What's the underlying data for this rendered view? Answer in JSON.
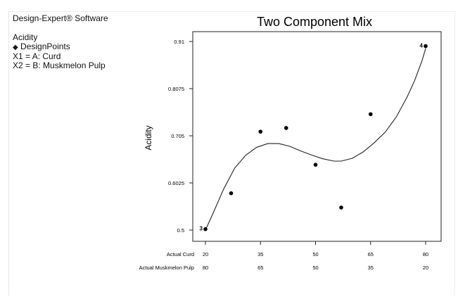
{
  "software": "Design-Expert® Software",
  "legend": {
    "response": "Acidity",
    "marker_glyph": "◆",
    "marker_label": "DesignPoints",
    "x1": "X1 = A: Curd",
    "x2": "X2 = B: Muskmelon Pulp"
  },
  "chart_data": {
    "type": "line",
    "title": "Two Component Mix",
    "ylabel": "Acidity",
    "xlabel_rows": [
      "Actual Curd",
      "Actual Muskmelon Pulp"
    ],
    "x_ticks": [
      {
        "curd": "20",
        "pulp": "80",
        "value": 20
      },
      {
        "curd": "35",
        "pulp": "65",
        "value": 35
      },
      {
        "curd": "50",
        "pulp": "50",
        "value": 50
      },
      {
        "curd": "65",
        "pulp": "35",
        "value": 65
      },
      {
        "curd": "80",
        "pulp": "20",
        "value": 80
      }
    ],
    "y_ticks": [
      {
        "label": "0.5",
        "value": 0.5
      },
      {
        "label": "0.6025",
        "value": 0.6025
      },
      {
        "label": "0.705",
        "value": 0.705
      },
      {
        "label": "0.8075",
        "value": 0.8075
      },
      {
        "label": "0.91",
        "value": 0.91
      }
    ],
    "xlim": [
      20,
      80
    ],
    "ylim": [
      0.5,
      0.91
    ],
    "grid": false,
    "points": [
      {
        "x": 20,
        "y": 0.502,
        "label": "3"
      },
      {
        "x": 27,
        "y": 0.58
      },
      {
        "x": 35,
        "y": 0.714
      },
      {
        "x": 42,
        "y": 0.722
      },
      {
        "x": 50,
        "y": 0.642
      },
      {
        "x": 57,
        "y": 0.549
      },
      {
        "x": 65,
        "y": 0.752
      },
      {
        "x": 80,
        "y": 0.9,
        "label": "4"
      }
    ],
    "fit_curve": [
      {
        "x": 20,
        "y": 0.5
      },
      {
        "x": 22,
        "y": 0.535
      },
      {
        "x": 25,
        "y": 0.59
      },
      {
        "x": 28,
        "y": 0.635
      },
      {
        "x": 31,
        "y": 0.663
      },
      {
        "x": 34,
        "y": 0.68
      },
      {
        "x": 37,
        "y": 0.688
      },
      {
        "x": 40,
        "y": 0.688
      },
      {
        "x": 43,
        "y": 0.682
      },
      {
        "x": 46,
        "y": 0.672
      },
      {
        "x": 49,
        "y": 0.663
      },
      {
        "x": 52,
        "y": 0.655
      },
      {
        "x": 55,
        "y": 0.65
      },
      {
        "x": 57,
        "y": 0.65
      },
      {
        "x": 60,
        "y": 0.656
      },
      {
        "x": 63,
        "y": 0.67
      },
      {
        "x": 66,
        "y": 0.69
      },
      {
        "x": 69,
        "y": 0.713
      },
      {
        "x": 72,
        "y": 0.746
      },
      {
        "x": 75,
        "y": 0.79
      },
      {
        "x": 77,
        "y": 0.825
      },
      {
        "x": 79,
        "y": 0.868
      },
      {
        "x": 80,
        "y": 0.895
      }
    ],
    "colors": {
      "axis": "#222222",
      "point": "#000000",
      "curve": "#222222"
    }
  }
}
